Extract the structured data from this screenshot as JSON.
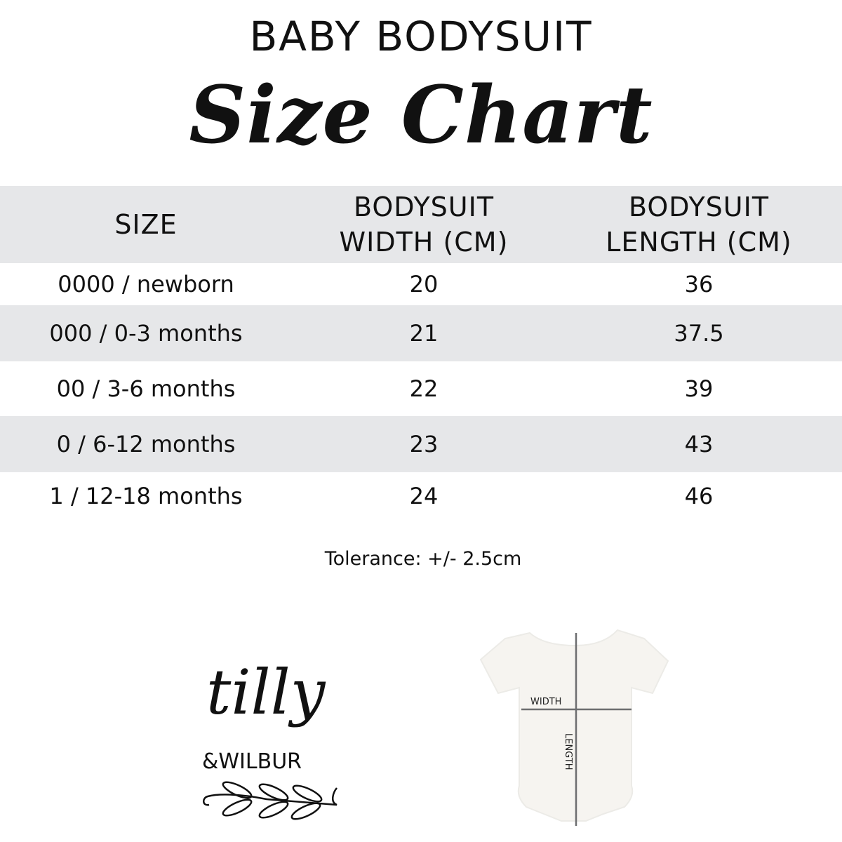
{
  "heading": {
    "line1": "BABY BODYSUIT",
    "line2": "Size Chart"
  },
  "table": {
    "headers": [
      "SIZE",
      "BODYSUIT\nWIDTH (CM)",
      "BODYSUIT\nLENGTH (CM)"
    ],
    "header_parts": [
      [
        "SIZE"
      ],
      [
        "BODYSUIT",
        "WIDTH (CM)"
      ],
      [
        "BODYSUIT",
        "LENGTH (CM)"
      ]
    ],
    "rows": [
      [
        "0000 / newborn",
        "20",
        "36"
      ],
      [
        "000 / 0-3 months",
        "21",
        "37.5"
      ],
      [
        "00 / 3-6 months",
        "22",
        "39"
      ],
      [
        "0 / 6-12 months",
        "23",
        "43"
      ],
      [
        "1 / 12-18 months",
        "24",
        "46"
      ]
    ]
  },
  "tolerance": "Tolerance: +/- 2.5cm",
  "logo": {
    "text": "tilly &WILBUR"
  },
  "diagram": {
    "width_label": "WIDTH",
    "length_label": "LENGTH"
  },
  "colors": {
    "stripe": "#e6e7e9",
    "text": "#111111",
    "measure_line": "#6d6e70"
  }
}
